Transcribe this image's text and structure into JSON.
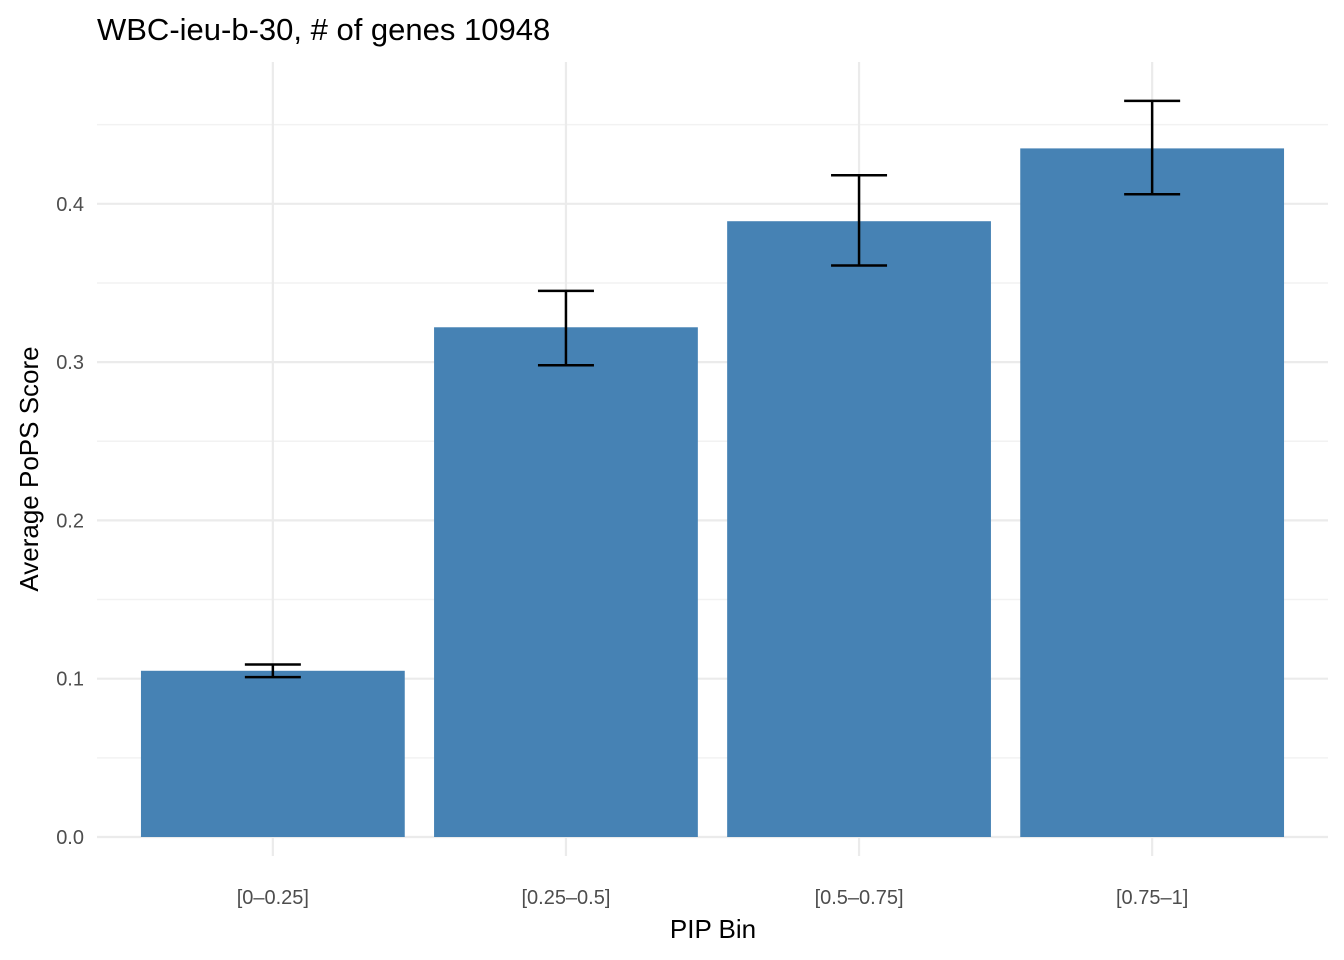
{
  "chart_data": {
    "type": "bar",
    "title": "WBC-ieu-b-30, # of genes 10948",
    "xlabel": "PIP Bin",
    "ylabel": "Average PoPS Score",
    "categories": [
      "[0–0.25]",
      "[0.25–0.5]",
      "[0.5–0.75]",
      "[0.75–1]"
    ],
    "values": [
      0.105,
      0.322,
      0.389,
      0.435
    ],
    "error_low": [
      0.101,
      0.298,
      0.361,
      0.406
    ],
    "error_high": [
      0.109,
      0.345,
      0.418,
      0.465
    ],
    "ylim": [
      0,
      0.48
    ],
    "yticks": [
      0.0,
      0.1,
      0.2,
      0.3,
      0.4
    ],
    "ytick_labels": [
      "0.0",
      "0.1",
      "0.2",
      "0.3",
      "0.4"
    ],
    "grid": true,
    "legend": "none",
    "colors": {
      "bar": "#4682B4",
      "errorbar": "#000000",
      "grid_major": "#EBEBEB",
      "grid_minor": "#F2F2F2"
    }
  }
}
